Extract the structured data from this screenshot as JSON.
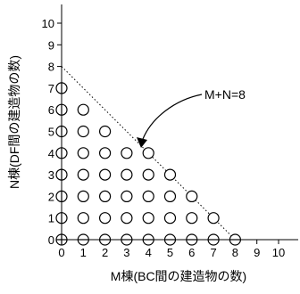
{
  "chart_data": {
    "type": "scatter",
    "title": "",
    "xlabel": "M棟(BC間の建造物の数)",
    "ylabel": "N棟(DF間の建造物の数)",
    "xlim": [
      0,
      10.8
    ],
    "ylim": [
      0,
      10.8
    ],
    "x_ticks": [
      "0",
      "1",
      "2",
      "3",
      "4",
      "5",
      "6",
      "7",
      "8",
      "9",
      "10"
    ],
    "y_ticks": [
      "0",
      "1",
      "2",
      "3",
      "4",
      "5",
      "6",
      "7",
      "8",
      "9",
      "10"
    ],
    "grid": false,
    "points": [
      [
        0,
        0
      ],
      [
        1,
        0
      ],
      [
        2,
        0
      ],
      [
        3,
        0
      ],
      [
        4,
        0
      ],
      [
        5,
        0
      ],
      [
        6,
        0
      ],
      [
        7,
        0
      ],
      [
        8,
        0
      ],
      [
        0,
        1
      ],
      [
        1,
        1
      ],
      [
        2,
        1
      ],
      [
        3,
        1
      ],
      [
        4,
        1
      ],
      [
        5,
        1
      ],
      [
        6,
        1
      ],
      [
        7,
        1
      ],
      [
        0,
        2
      ],
      [
        1,
        2
      ],
      [
        2,
        2
      ],
      [
        3,
        2
      ],
      [
        4,
        2
      ],
      [
        5,
        2
      ],
      [
        6,
        2
      ],
      [
        0,
        3
      ],
      [
        1,
        3
      ],
      [
        2,
        3
      ],
      [
        3,
        3
      ],
      [
        4,
        3
      ],
      [
        5,
        3
      ],
      [
        0,
        4
      ],
      [
        1,
        4
      ],
      [
        2,
        4
      ],
      [
        3,
        4
      ],
      [
        4,
        4
      ],
      [
        0,
        5
      ],
      [
        1,
        5
      ],
      [
        2,
        5
      ],
      [
        0,
        6
      ],
      [
        1,
        6
      ],
      [
        0,
        7
      ]
    ],
    "lines": [
      {
        "label": "M+N=8",
        "from": [
          0,
          8
        ],
        "to": [
          8,
          0
        ],
        "style": "dotted"
      }
    ],
    "annotations": [
      {
        "text": "M+N=8",
        "points_to": [
          4,
          4
        ]
      }
    ]
  },
  "colors": {
    "axis": "#000000",
    "marker_stroke": "#000000",
    "marker_fill": "#ffffff",
    "line": "#000000"
  }
}
